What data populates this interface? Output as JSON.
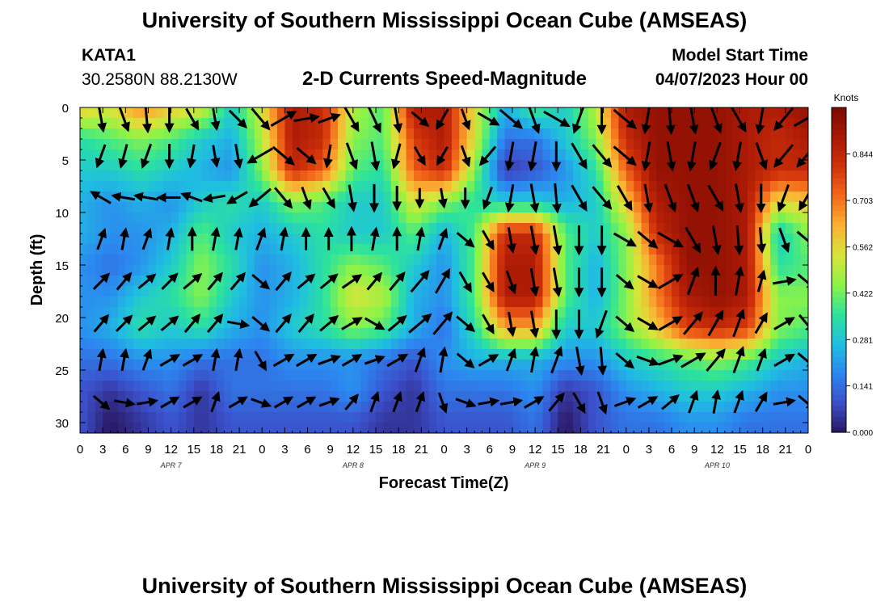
{
  "page": {
    "title_top": "University of Southern Mississippi Ocean Cube (AMSEAS)",
    "title_bottom": "University of Southern Mississippi Ocean Cube (AMSEAS)",
    "station_id": "KATA1",
    "station_coords": "30.2580N  88.2130W",
    "plot_title": "2-D Currents Speed-Magnitude",
    "model_start_label": "Model Start Time",
    "model_start_value": "04/07/2023 Hour 00"
  },
  "colors": {
    "colormap": [
      "#2a1660",
      "#3b4fc9",
      "#2c86f0",
      "#1fbfe0",
      "#2de39a",
      "#8cf347",
      "#d8e43a",
      "#fbb233",
      "#f36a1a",
      "#d1320a",
      "#a81906",
      "#7c0a02"
    ]
  },
  "chart_data": {
    "type": "heatmap",
    "title": "2-D Currents Speed-Magnitude",
    "xlabel": "Forecast Time(Z)",
    "ylabel": "Depth (ft)",
    "xlim": [
      0,
      96
    ],
    "ylim": [
      0,
      31
    ],
    "x_ticks": [
      0,
      3,
      6,
      9,
      12,
      15,
      18,
      21,
      24,
      27,
      30,
      33,
      36,
      39,
      42,
      45,
      48,
      51,
      54,
      57,
      60,
      63,
      66,
      69,
      72,
      75,
      78,
      81,
      84,
      87,
      90,
      93,
      96
    ],
    "x_tick_labels": [
      "0",
      "3",
      "6",
      "9",
      "12",
      "15",
      "18",
      "21",
      "0",
      "3",
      "6",
      "9",
      "12",
      "15",
      "18",
      "21",
      "0",
      "3",
      "6",
      "9",
      "12",
      "15",
      "18",
      "21",
      "0",
      "3",
      "6",
      "9",
      "12",
      "15",
      "18",
      "21",
      "0"
    ],
    "y_ticks": [
      0,
      5,
      10,
      15,
      20,
      25,
      30
    ],
    "y_tick_labels": [
      "0",
      "5",
      "10",
      "15",
      "20",
      "25",
      "30"
    ],
    "day_labels": [
      {
        "hour": 12,
        "label": "APR 7"
      },
      {
        "hour": 36,
        "label": "APR 8"
      },
      {
        "hour": 60,
        "label": "APR 9"
      },
      {
        "hour": 84,
        "label": "APR 10"
      }
    ],
    "colorbar": {
      "label": "Knots",
      "range": [
        0,
        0.985
      ],
      "ticks": [
        0.0,
        0.141,
        0.281,
        0.422,
        0.562,
        0.703,
        0.844
      ],
      "tick_labels": [
        "0.000",
        "0.141",
        "0.281",
        "0.422",
        "0.562",
        "0.703",
        "0.844"
      ]
    },
    "x": [
      0,
      4,
      8,
      12,
      16,
      20,
      24,
      28,
      32,
      36,
      40,
      44,
      48,
      52,
      56,
      60,
      64,
      68,
      72,
      76,
      80,
      84,
      88,
      92,
      96
    ],
    "depths": [
      0,
      3,
      6,
      9,
      12,
      15,
      18,
      21,
      24,
      27,
      30
    ],
    "speed": [
      [
        0.6,
        0.55,
        0.7,
        0.6,
        0.55,
        0.3,
        0.55,
        0.9,
        0.85,
        0.5,
        0.4,
        0.9,
        0.9,
        0.55,
        0.25,
        0.4,
        0.3,
        0.5,
        0.9,
        0.95,
        0.95,
        0.95,
        0.9,
        0.9,
        0.95
      ],
      [
        0.35,
        0.4,
        0.45,
        0.4,
        0.3,
        0.25,
        0.5,
        0.9,
        0.85,
        0.45,
        0.4,
        0.8,
        0.9,
        0.55,
        0.15,
        0.15,
        0.3,
        0.45,
        0.85,
        0.95,
        0.95,
        0.95,
        0.9,
        0.85,
        0.9
      ],
      [
        0.3,
        0.3,
        0.35,
        0.3,
        0.25,
        0.2,
        0.45,
        0.85,
        0.75,
        0.4,
        0.35,
        0.75,
        0.85,
        0.45,
        0.05,
        0.1,
        0.2,
        0.35,
        0.75,
        0.95,
        0.95,
        0.95,
        0.9,
        0.85,
        0.85
      ],
      [
        0.25,
        0.2,
        0.25,
        0.2,
        0.3,
        0.35,
        0.3,
        0.45,
        0.4,
        0.3,
        0.3,
        0.55,
        0.45,
        0.35,
        0.3,
        0.3,
        0.25,
        0.3,
        0.6,
        0.9,
        0.95,
        0.95,
        0.9,
        0.55,
        0.6
      ],
      [
        0.25,
        0.2,
        0.2,
        0.25,
        0.4,
        0.3,
        0.25,
        0.3,
        0.35,
        0.3,
        0.3,
        0.4,
        0.25,
        0.4,
        0.85,
        0.85,
        0.4,
        0.3,
        0.45,
        0.85,
        0.95,
        0.95,
        0.9,
        0.3,
        0.45
      ],
      [
        0.2,
        0.15,
        0.2,
        0.3,
        0.45,
        0.35,
        0.2,
        0.25,
        0.35,
        0.45,
        0.4,
        0.3,
        0.2,
        0.4,
        0.9,
        0.9,
        0.4,
        0.25,
        0.45,
        0.7,
        0.95,
        0.95,
        0.9,
        0.35,
        0.4
      ],
      [
        0.2,
        0.2,
        0.3,
        0.35,
        0.45,
        0.3,
        0.2,
        0.25,
        0.35,
        0.55,
        0.5,
        0.25,
        0.2,
        0.4,
        0.9,
        0.9,
        0.4,
        0.25,
        0.45,
        0.7,
        0.9,
        0.95,
        0.9,
        0.45,
        0.45
      ],
      [
        0.2,
        0.25,
        0.35,
        0.3,
        0.35,
        0.25,
        0.2,
        0.3,
        0.35,
        0.45,
        0.4,
        0.25,
        0.15,
        0.35,
        0.65,
        0.65,
        0.3,
        0.3,
        0.45,
        0.6,
        0.8,
        0.85,
        0.8,
        0.45,
        0.4
      ],
      [
        0.15,
        0.15,
        0.2,
        0.2,
        0.15,
        0.15,
        0.15,
        0.2,
        0.2,
        0.2,
        0.15,
        0.1,
        0.2,
        0.25,
        0.25,
        0.25,
        0.2,
        0.2,
        0.3,
        0.35,
        0.4,
        0.45,
        0.4,
        0.3,
        0.25
      ],
      [
        0.1,
        0.05,
        0.1,
        0.15,
        0.05,
        0.15,
        0.15,
        0.15,
        0.15,
        0.2,
        0.1,
        0.05,
        0.15,
        0.15,
        0.15,
        0.2,
        0.05,
        0.1,
        0.2,
        0.25,
        0.3,
        0.3,
        0.25,
        0.2,
        0.2
      ],
      [
        0.1,
        0.0,
        0.05,
        0.1,
        0.05,
        0.1,
        0.1,
        0.1,
        0.1,
        0.1,
        0.05,
        0.05,
        0.1,
        0.1,
        0.1,
        0.15,
        0.0,
        0.1,
        0.15,
        0.15,
        0.2,
        0.2,
        0.15,
        0.15,
        0.15
      ]
    ],
    "vectors_x": [
      3,
      6,
      9,
      12,
      15,
      18,
      21,
      24,
      27,
      30,
      33,
      36,
      39,
      42,
      45,
      48,
      51,
      54,
      57,
      60,
      63,
      66,
      69,
      72,
      75,
      78,
      81,
      84,
      87,
      90,
      93,
      96
    ],
    "vectors_depth": [
      0,
      3.5,
      7.5,
      11.5,
      15.5,
      19.5,
      23,
      27
    ],
    "vector_dir_deg": [
      [
        170,
        160,
        175,
        180,
        150,
        170,
        135,
        140,
        60,
        80,
        70,
        150,
        155,
        170,
        130,
        210,
        160,
        120,
        130,
        160,
        120,
        200,
        180,
        130,
        190,
        175,
        170,
        160,
        150,
        190,
        220,
        60
      ],
      [
        200,
        195,
        200,
        180,
        190,
        170,
        170,
        240,
        130,
        130,
        190,
        160,
        170,
        195,
        150,
        210,
        160,
        220,
        190,
        190,
        180,
        150,
        140,
        130,
        190,
        170,
        190,
        200,
        190,
        160,
        220,
        220
      ],
      [
        300,
        280,
        280,
        270,
        290,
        260,
        240,
        230,
        140,
        160,
        150,
        170,
        180,
        180,
        180,
        170,
        180,
        200,
        190,
        170,
        175,
        150,
        140,
        150,
        170,
        160,
        160,
        150,
        170,
        180,
        200,
        210
      ],
      [
        20,
        10,
        20,
        10,
        0,
        10,
        10,
        20,
        10,
        0,
        0,
        0,
        10,
        0,
        10,
        20,
        130,
        150,
        170,
        170,
        170,
        180,
        180,
        120,
        130,
        120,
        150,
        170,
        175,
        175,
        160,
        130
      ],
      [
        45,
        40,
        50,
        45,
        50,
        40,
        40,
        130,
        40,
        50,
        50,
        55,
        40,
        40,
        40,
        30,
        150,
        150,
        160,
        170,
        170,
        180,
        180,
        130,
        120,
        60,
        20,
        0,
        10,
        15,
        80,
        130
      ],
      [
        40,
        45,
        50,
        50,
        40,
        40,
        100,
        130,
        40,
        40,
        50,
        60,
        120,
        50,
        50,
        40,
        130,
        150,
        170,
        170,
        180,
        180,
        200,
        130,
        120,
        60,
        40,
        30,
        20,
        30,
        60,
        140
      ],
      [
        10,
        10,
        20,
        60,
        60,
        10,
        10,
        150,
        60,
        60,
        70,
        60,
        70,
        60,
        20,
        10,
        130,
        60,
        20,
        10,
        20,
        170,
        175,
        130,
        110,
        70,
        60,
        40,
        20,
        20,
        60,
        130
      ],
      [
        130,
        100,
        80,
        60,
        60,
        20,
        60,
        110,
        60,
        60,
        70,
        40,
        20,
        20,
        20,
        160,
        110,
        80,
        80,
        60,
        40,
        150,
        160,
        70,
        60,
        50,
        20,
        10,
        20,
        30,
        80,
        130
      ]
    ],
    "vector_magnitude": [
      [
        0.6,
        0.6,
        0.7,
        0.6,
        0.5,
        0.3,
        0.5,
        0.8,
        0.9,
        0.6,
        0.4,
        0.8,
        0.9,
        0.7,
        0.3,
        0.4,
        0.3,
        0.5,
        0.9,
        0.95,
        0.95,
        0.95,
        0.9,
        0.9,
        0.9,
        0.95,
        0.95,
        0.9,
        0.9,
        0.9,
        0.9,
        0.95
      ],
      [
        0.5,
        0.5,
        0.6,
        0.5,
        0.4,
        0.3,
        0.5,
        0.9,
        0.8,
        0.5,
        0.4,
        0.8,
        0.9,
        0.6,
        0.2,
        0.2,
        0.3,
        0.5,
        0.9,
        0.95,
        0.95,
        0.95,
        0.9,
        0.9,
        0.9,
        0.95,
        0.95,
        0.9,
        0.9,
        0.85,
        0.9,
        0.9
      ],
      [
        0.4,
        0.4,
        0.5,
        0.4,
        0.3,
        0.3,
        0.4,
        0.8,
        0.7,
        0.4,
        0.4,
        0.7,
        0.8,
        0.5,
        0.1,
        0.1,
        0.2,
        0.4,
        0.8,
        0.9,
        0.95,
        0.95,
        0.9,
        0.85,
        0.85,
        0.9,
        0.9,
        0.9,
        0.9,
        0.85,
        0.85,
        0.85
      ],
      [
        0.3,
        0.3,
        0.3,
        0.3,
        0.4,
        0.4,
        0.3,
        0.4,
        0.4,
        0.3,
        0.3,
        0.5,
        0.4,
        0.4,
        0.4,
        0.3,
        0.3,
        0.3,
        0.6,
        0.9,
        0.95,
        0.95,
        0.9,
        0.6,
        0.6,
        0.9,
        0.9,
        0.9,
        0.9,
        0.6,
        0.6,
        0.6
      ],
      [
        0.3,
        0.3,
        0.3,
        0.3,
        0.4,
        0.3,
        0.3,
        0.3,
        0.4,
        0.3,
        0.3,
        0.4,
        0.3,
        0.4,
        0.8,
        0.8,
        0.4,
        0.3,
        0.5,
        0.8,
        0.9,
        0.9,
        0.9,
        0.3,
        0.4,
        0.8,
        0.9,
        0.9,
        0.9,
        0.3,
        0.4,
        0.4
      ],
      [
        0.3,
        0.3,
        0.3,
        0.3,
        0.4,
        0.4,
        0.3,
        0.3,
        0.4,
        0.4,
        0.4,
        0.4,
        0.3,
        0.4,
        0.9,
        0.9,
        0.4,
        0.3,
        0.5,
        0.7,
        0.9,
        0.9,
        0.9,
        0.4,
        0.4,
        0.7,
        0.9,
        0.9,
        0.9,
        0.4,
        0.4,
        0.4
      ],
      [
        0.3,
        0.3,
        0.3,
        0.3,
        0.3,
        0.3,
        0.3,
        0.3,
        0.4,
        0.4,
        0.4,
        0.3,
        0.2,
        0.4,
        0.6,
        0.6,
        0.3,
        0.3,
        0.4,
        0.6,
        0.8,
        0.85,
        0.8,
        0.4,
        0.4,
        0.6,
        0.8,
        0.85,
        0.8,
        0.4,
        0.4,
        0.4
      ],
      [
        0.2,
        0.2,
        0.2,
        0.2,
        0.2,
        0.2,
        0.2,
        0.2,
        0.2,
        0.2,
        0.2,
        0.1,
        0.2,
        0.2,
        0.2,
        0.2,
        0.2,
        0.2,
        0.3,
        0.3,
        0.4,
        0.4,
        0.4,
        0.3,
        0.3,
        0.3,
        0.4,
        0.4,
        0.4,
        0.3,
        0.3,
        0.3
      ]
    ]
  }
}
